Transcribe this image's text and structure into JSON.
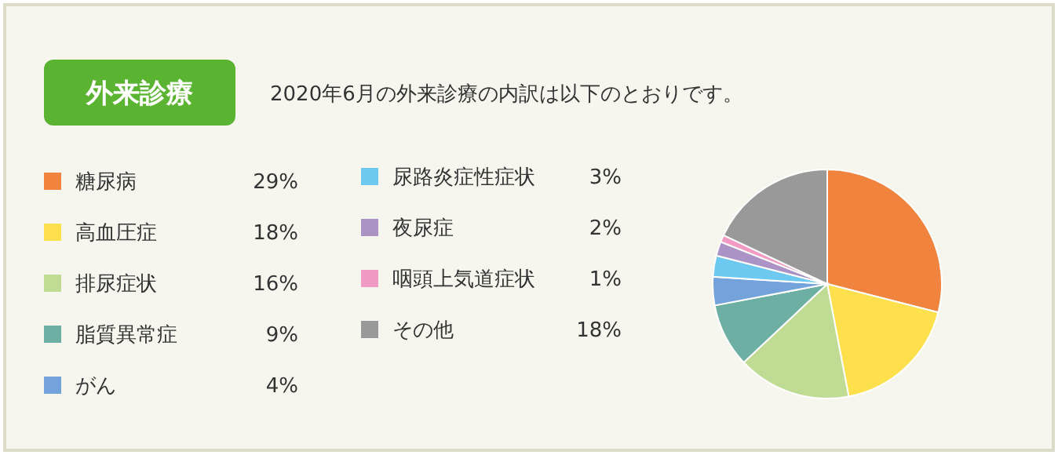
{
  "chart_data": {
    "type": "pie",
    "title": "外来診療",
    "subtitle": "2020年6月の外来診療の内訳は以下のとおりです。",
    "categories": [
      "糖尿病",
      "高血圧症",
      "排尿症状",
      "脂質異常症",
      "がん",
      "尿路炎症性症状",
      "夜尿症",
      "咽頭上気道症状",
      "その他"
    ],
    "values": [
      29,
      18,
      16,
      9,
      4,
      3,
      2,
      1,
      18
    ],
    "colors": [
      "#f0843e",
      "#fde04c",
      "#bfdb94",
      "#6db0a3",
      "#74a3dc",
      "#6dc9ef",
      "#ab93c6",
      "#f09ac4",
      "#999999"
    ],
    "value_labels": [
      "29%",
      "18%",
      "16%",
      "9%",
      "4%",
      "3%",
      "2%",
      "1%",
      "18%"
    ],
    "legend": "left"
  }
}
